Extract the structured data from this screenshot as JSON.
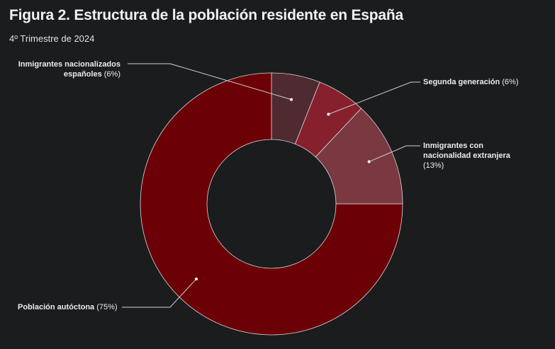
{
  "header": {
    "title": "Figura 2. Estructura de la población residente en España",
    "subtitle": "4º Trimestre de 2024"
  },
  "chart_data": {
    "type": "pie",
    "variant": "donut",
    "title": "Figura 2. Estructura de la población residente en España",
    "subtitle": "4º Trimestre de 2024",
    "slices": [
      {
        "label": "Inmigrantes nacionalizados españoles",
        "value": 6,
        "value_text": "(6%)",
        "color": "#4f2a31"
      },
      {
        "label": "Segunda generación",
        "value": 6,
        "value_text": "(6%)",
        "color": "#86202d"
      },
      {
        "label": "Inmigrantes con nacionalidad extranjera",
        "value": 13,
        "value_text": "(13%)",
        "color": "#7a3840"
      },
      {
        "label": "Población autóctona",
        "value": 75,
        "value_text": "(75%)",
        "color": "#6c0007"
      }
    ]
  }
}
